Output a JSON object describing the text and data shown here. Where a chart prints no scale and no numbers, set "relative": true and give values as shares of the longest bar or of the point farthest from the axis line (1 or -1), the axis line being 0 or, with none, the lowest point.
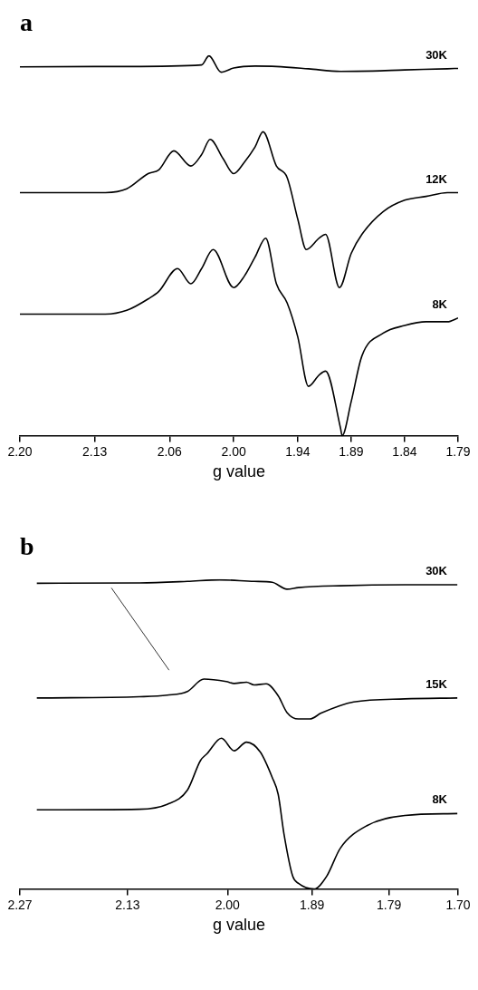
{
  "chart_data": [
    {
      "type": "line",
      "title": "a",
      "xlabel": "g value",
      "relative": true,
      "marker": "none",
      "xlim": [
        2.2,
        1.79
      ],
      "xticks": [
        {
          "value": 2.2,
          "label": "2.20"
        },
        2.13,
        2.06,
        {
          "value": 2.0,
          "label": "2.00"
        },
        1.94,
        1.89,
        1.84,
        1.79
      ],
      "series": [
        {
          "name": "30K",
          "color": "#000000",
          "x": [
            2.2,
            2.1,
            2.03,
            2.0231,
            2.0117,
            2.0,
            1.98,
            1.96,
            1.93,
            1.9,
            1.87,
            1.84,
            1.8,
            1.79
          ],
          "values": [
            0.971,
            0.972,
            0.976,
            1.0,
            0.957,
            0.968,
            0.973,
            0.972,
            0.966,
            0.959,
            0.96,
            0.963,
            0.966,
            0.967
          ]
        },
        {
          "name": "12K",
          "color": "#000000",
          "x": [
            2.2,
            2.16,
            2.12,
            2.1,
            2.08,
            2.07,
            2.056,
            2.04,
            2.03,
            2.022,
            2.01,
            2.0,
            1.99,
            1.98,
            1.9725,
            1.96,
            1.95,
            1.94,
            1.932,
            1.92,
            1.914,
            1.901,
            1.89,
            1.88,
            1.86,
            1.84,
            1.82,
            1.8,
            1.79
          ],
          "values": [
            0.64,
            0.64,
            0.64,
            0.65,
            0.69,
            0.7,
            0.75,
            0.71,
            0.74,
            0.78,
            0.73,
            0.69,
            0.72,
            0.76,
            0.8,
            0.71,
            0.68,
            0.57,
            0.49,
            0.52,
            0.53,
            0.39,
            0.48,
            0.53,
            0.59,
            0.62,
            0.63,
            0.64,
            0.64
          ]
        },
        {
          "name": "8K",
          "color": "#000000",
          "x": [
            2.2,
            2.16,
            2.12,
            2.1,
            2.08,
            2.07,
            2.0525,
            2.04,
            2.03,
            2.0192,
            2.0,
            1.99,
            1.98,
            1.97,
            1.96,
            1.95,
            1.94,
            1.93,
            1.92,
            1.914,
            1.9,
            1.8985,
            1.89,
            1.88,
            1.86,
            1.84,
            1.82,
            1.8,
            1.79
          ],
          "values": [
            0.32,
            0.32,
            0.32,
            0.33,
            0.36,
            0.38,
            0.44,
            0.4,
            0.44,
            0.49,
            0.39,
            0.42,
            0.47,
            0.52,
            0.4,
            0.35,
            0.26,
            0.13,
            0.16,
            0.17,
            0.02,
            0,
            0.09,
            0.21,
            0.27,
            0.29,
            0.3,
            0.3,
            0.31
          ]
        }
      ]
    },
    {
      "type": "line",
      "title": "b",
      "xlabel": "g value",
      "relative": true,
      "marker": "none",
      "xlim": [
        2.27,
        1.7
      ],
      "xticks": [
        2.27,
        2.13,
        {
          "value": 2.0,
          "label": "2.00"
        },
        1.89,
        1.79,
        {
          "value": 1.7,
          "label": "1.70"
        }
      ],
      "series": [
        {
          "name": "30K",
          "color": "#000000",
          "x": [
            2.248,
            2.1145,
            2.0521,
            2.0102,
            1.9652,
            1.9418,
            1.9226,
            1.9076,
            1.8532,
            1.7691,
            1.701
          ],
          "values": [
            0.989,
            0.99,
            0.995,
            1.0,
            0.995,
            0.992,
            0.97,
            0.975,
            0.981,
            0.984,
            0.984
          ]
        },
        {
          "name": "15K",
          "color": "#000000",
          "x": [
            2.248,
            2.1145,
            2.0784,
            2.0521,
            2.0307,
            2.0016,
            1.9914,
            1.9752,
            1.9652,
            1.9496,
            1.934,
            1.9226,
            1.9076,
            1.8928,
            1.8781,
            1.8357,
            1.7691,
            1.701
          ],
          "values": [
            0.618,
            0.622,
            0.627,
            0.639,
            0.679,
            0.671,
            0.665,
            0.669,
            0.66,
            0.664,
            0.625,
            0.571,
            0.55,
            0.55,
            0.569,
            0.605,
            0.615,
            0.618
          ]
        },
        {
          "color": "#000000",
          "x": [
            2.151,
            2.076
          ],
          "values": [
            0.974,
            0.708
          ]
        },
        {
          "name": "8K",
          "color": "#000000",
          "x": [
            2.248,
            2.1145,
            2.0784,
            2.0521,
            2.035,
            2.0265,
            2.0078,
            1.9914,
            1.9752,
            1.9573,
            1.9418,
            1.934,
            1.9265,
            1.9151,
            1.9076,
            1.8873,
            1.871,
            1.8532,
            1.8186,
            1.7691,
            1.701
          ],
          "values": [
            0.256,
            0.258,
            0.274,
            0.32,
            0.416,
            0.438,
            0.488,
            0.447,
            0.475,
            0.443,
            0.361,
            0.306,
            0.178,
            0.041,
            0.018,
            0,
            0.041,
            0.132,
            0.205,
            0.238,
            0.244
          ]
        }
      ]
    }
  ]
}
